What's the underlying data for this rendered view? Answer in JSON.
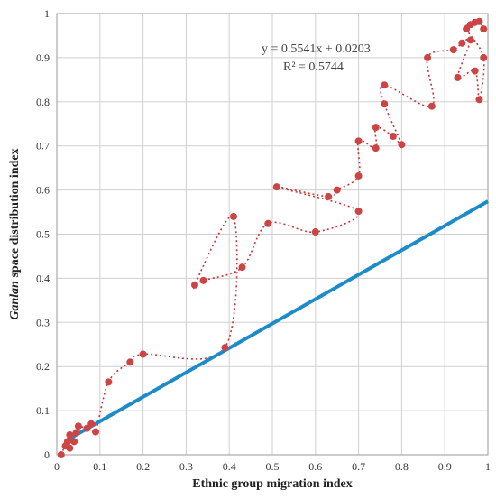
{
  "chart_data": {
    "type": "scatter",
    "xlabel": "Ethnic group migration index",
    "ylabel_italic": "Ganlan",
    "ylabel_rest": " space distribution index",
    "xlim": [
      0,
      1
    ],
    "ylim": [
      0,
      1
    ],
    "x_ticks": [
      "0",
      "0.1",
      "0.2",
      "0.3",
      "0.4",
      "0.5",
      "0.6",
      "0.7",
      "0.8",
      "0.9",
      "1"
    ],
    "y_ticks": [
      "0",
      "0.1",
      "0.2",
      "0.3",
      "0.4",
      "0.5",
      "0.6",
      "0.7",
      "0.8",
      "0.9",
      "1"
    ],
    "grid": true,
    "point_color": "#cc4444",
    "path_color": "#cc3333",
    "trend_color": "#1e8bc9",
    "trendline": {
      "slope": 0.5541,
      "intercept": 0.0203,
      "equation_label": "y = 0.5541x + 0.0203",
      "r2_label": "R² = 0.5744",
      "x_range": [
        0.02,
        1.0
      ]
    },
    "points": [
      [
        0.01,
        0.0
      ],
      [
        0.02,
        0.02
      ],
      [
        0.03,
        0.015
      ],
      [
        0.025,
        0.03
      ],
      [
        0.04,
        0.03
      ],
      [
        0.03,
        0.045
      ],
      [
        0.045,
        0.05
      ],
      [
        0.05,
        0.065
      ],
      [
        0.07,
        0.06
      ],
      [
        0.08,
        0.07
      ],
      [
        0.09,
        0.052
      ],
      [
        0.12,
        0.165
      ],
      [
        0.17,
        0.21
      ],
      [
        0.2,
        0.228
      ],
      [
        0.39,
        0.243
      ],
      [
        0.41,
        0.54
      ],
      [
        0.32,
        0.385
      ],
      [
        0.34,
        0.395
      ],
      [
        0.43,
        0.425
      ],
      [
        0.49,
        0.524
      ],
      [
        0.6,
        0.505
      ],
      [
        0.7,
        0.552
      ],
      [
        0.51,
        0.607
      ],
      [
        0.63,
        0.585
      ],
      [
        0.65,
        0.6
      ],
      [
        0.7,
        0.632
      ],
      [
        0.7,
        0.711
      ],
      [
        0.74,
        0.695
      ],
      [
        0.74,
        0.742
      ],
      [
        0.78,
        0.722
      ],
      [
        0.8,
        0.703
      ],
      [
        0.76,
        0.795
      ],
      [
        0.76,
        0.838
      ],
      [
        0.87,
        0.79
      ],
      [
        0.86,
        0.9
      ],
      [
        0.92,
        0.918
      ],
      [
        0.94,
        0.933
      ],
      [
        0.96,
        0.94
      ],
      [
        0.93,
        0.855
      ],
      [
        0.97,
        0.87
      ],
      [
        0.98,
        0.805
      ],
      [
        0.99,
        0.9
      ],
      [
        0.95,
        0.965
      ],
      [
        0.96,
        0.975
      ],
      [
        0.97,
        0.98
      ],
      [
        0.98,
        0.982
      ],
      [
        0.99,
        0.965
      ]
    ]
  }
}
